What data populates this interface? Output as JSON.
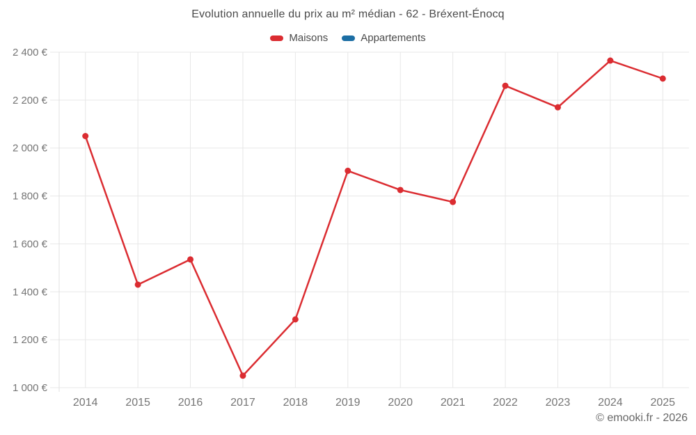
{
  "chart_data": {
    "type": "line",
    "title": "Evolution annuelle du prix au m² médian - 62 - Bréxent-Énocq",
    "x": [
      2014,
      2015,
      2016,
      2017,
      2018,
      2019,
      2020,
      2021,
      2022,
      2023,
      2024,
      2025
    ],
    "series": [
      {
        "name": "Maisons",
        "color": "#db2c31",
        "values": [
          2050,
          1430,
          1535,
          1050,
          1285,
          1905,
          1825,
          1775,
          2260,
          2170,
          2365,
          2290
        ]
      },
      {
        "name": "Appartements",
        "color": "#1c6ea4",
        "values": []
      }
    ],
    "ylim": [
      1000,
      2400
    ],
    "ytick_step": 200,
    "yunit": "€",
    "grid": true,
    "legend_position": "top",
    "colors": {
      "grid": "#e7e7e7",
      "axis_edge": "#e0e0e0",
      "tick_label": "#757575",
      "title_text": "#4a4a4a"
    }
  },
  "footer": {
    "copyright": "© emooki.fr - 2026"
  }
}
